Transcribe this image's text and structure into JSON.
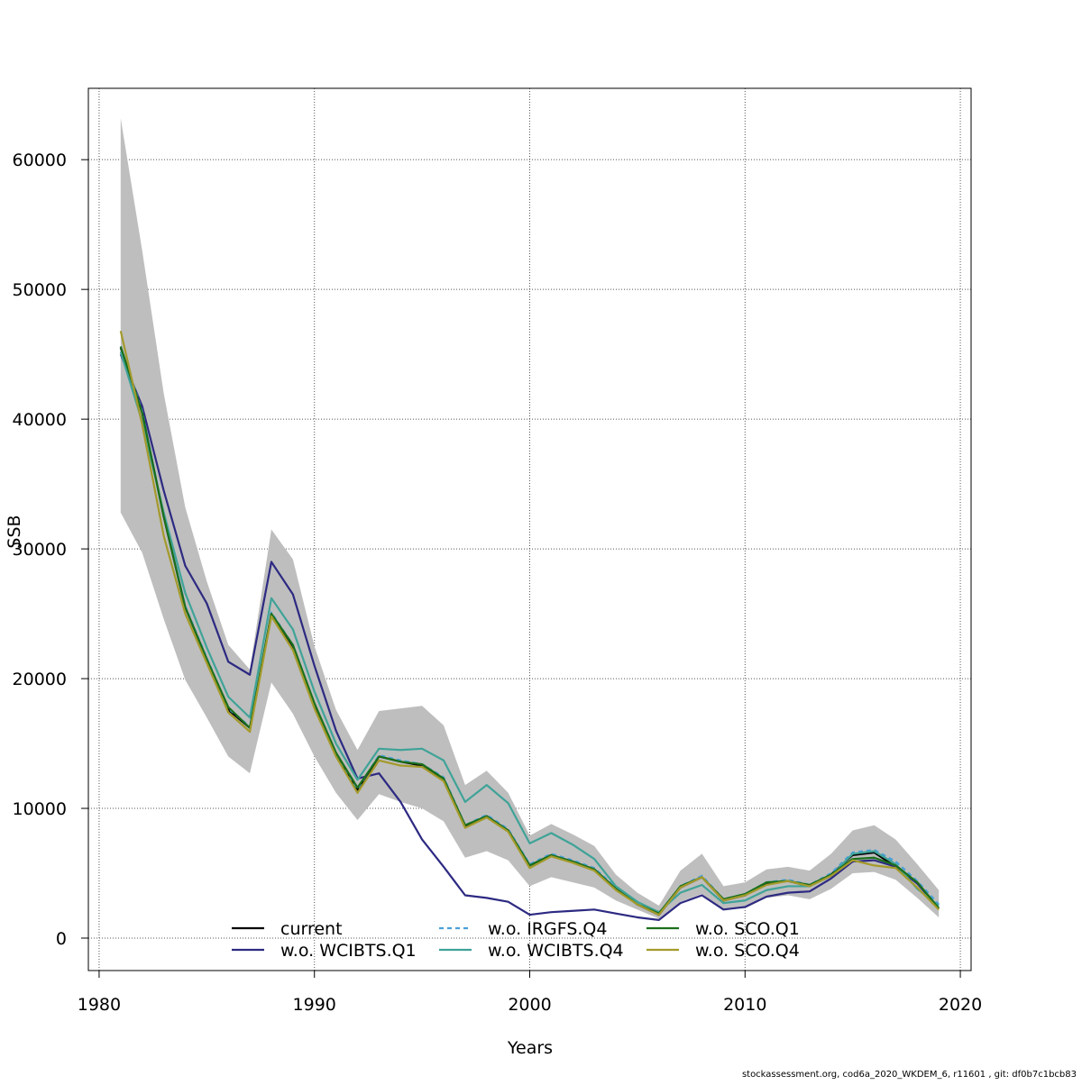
{
  "chart_data": {
    "type": "line",
    "xlabel": "Years",
    "ylabel": "SSB",
    "xlim": [
      1979.5,
      2020.5
    ],
    "ylim": [
      -2500,
      65500
    ],
    "xticks": [
      1980,
      1990,
      2000,
      2010,
      2020
    ],
    "yticks": [
      0,
      10000,
      20000,
      30000,
      40000,
      50000,
      60000
    ],
    "grid": true,
    "legend_position": "bottom",
    "x": [
      1981,
      1982,
      1983,
      1984,
      1985,
      1986,
      1987,
      1988,
      1989,
      1990,
      1991,
      1992,
      1993,
      1994,
      1995,
      1996,
      1997,
      1998,
      1999,
      2000,
      2001,
      2002,
      2003,
      2004,
      2005,
      2006,
      2007,
      2008,
      2009,
      2010,
      2011,
      2012,
      2013,
      2014,
      2015,
      2016,
      2017,
      2018,
      2019
    ],
    "confidence_band": {
      "color": "#bebebe",
      "upper": [
        63200,
        53000,
        42000,
        33200,
        27500,
        22600,
        20700,
        31500,
        29200,
        22500,
        17600,
        14500,
        17500,
        17700,
        17900,
        16400,
        11800,
        12900,
        11200,
        7900,
        8800,
        8000,
        7100,
        4900,
        3500,
        2500,
        5200,
        6500,
        4000,
        4300,
        5300,
        5500,
        5200,
        6500,
        8300,
        8700,
        7600,
        5700,
        3700
      ],
      "lower": [
        32800,
        29700,
        24600,
        19900,
        17000,
        14000,
        12700,
        19700,
        17300,
        14000,
        11200,
        9100,
        11100,
        10500,
        10000,
        9000,
        6200,
        6700,
        6000,
        4000,
        4700,
        4300,
        3900,
        2900,
        2200,
        1500,
        2800,
        3400,
        2200,
        2300,
        3100,
        3300,
        3000,
        3800,
        5000,
        5100,
        4500,
        3100,
        1600
      ]
    },
    "series": [
      {
        "name": "current",
        "color": "#000000",
        "dash": "",
        "values": [
          45500,
          40500,
          32500,
          25500,
          21500,
          17600,
          16200,
          25000,
          22500,
          18000,
          14200,
          11400,
          14000,
          13600,
          13300,
          12300,
          8600,
          9400,
          8300,
          5600,
          6400,
          5900,
          5300,
          3800,
          2600,
          1800,
          3900,
          4700,
          2900,
          3300,
          4200,
          4400,
          4000,
          4900,
          6400,
          6600,
          5500,
          4300,
          2300
        ]
      },
      {
        "name": "w.o. WCIBTS.Q1",
        "color": "#2d2a82",
        "dash": "",
        "values": [
          45000,
          41000,
          34500,
          28700,
          25800,
          21300,
          20300,
          29000,
          26500,
          21000,
          16000,
          12300,
          12700,
          10500,
          7600,
          5500,
          3300,
          3100,
          2800,
          1800,
          2000,
          2100,
          2200,
          1900,
          1600,
          1400,
          2700,
          3300,
          2200,
          2400,
          3200,
          3500,
          3600,
          4600,
          5900,
          6000,
          5500,
          4200,
          2300
        ]
      },
      {
        "name": "w.o. IRGFS.Q4",
        "color": "#49a0d8",
        "dash": "5,4",
        "values": [
          45600,
          40600,
          32600,
          25600,
          21600,
          17700,
          16300,
          25100,
          22600,
          18100,
          14300,
          11500,
          14100,
          13700,
          13400,
          12400,
          8700,
          9500,
          8400,
          5700,
          6500,
          6000,
          5400,
          3900,
          2700,
          1900,
          4000,
          4800,
          3000,
          3400,
          4300,
          4500,
          4100,
          5000,
          6600,
          6800,
          5900,
          4400,
          2600
        ]
      },
      {
        "name": "w.o. WCIBTS.Q4",
        "color": "#3fa398",
        "dash": "",
        "values": [
          45200,
          39800,
          32800,
          26600,
          22400,
          18600,
          17000,
          26200,
          23800,
          19000,
          15000,
          12200,
          14600,
          14500,
          14600,
          13700,
          10500,
          11800,
          10400,
          7300,
          8100,
          7200,
          6100,
          4000,
          2800,
          2000,
          3500,
          4100,
          2700,
          2900,
          3700,
          4000,
          4000,
          4800,
          6500,
          6700,
          5700,
          3800,
          2500
        ]
      },
      {
        "name": "w.o. SCO.Q1",
        "color": "#1a6f1a",
        "dash": "",
        "values": [
          45600,
          40500,
          32500,
          25500,
          21500,
          17800,
          16200,
          25000,
          22600,
          18100,
          14300,
          11600,
          14000,
          13600,
          13400,
          12300,
          8700,
          9400,
          8300,
          5600,
          6400,
          5900,
          5300,
          3800,
          2600,
          1900,
          4000,
          4700,
          3000,
          3400,
          4300,
          4400,
          4100,
          4900,
          6100,
          6200,
          5600,
          4300,
          2300
        ]
      },
      {
        "name": "w.o. SCO.Q4",
        "color": "#a49a2b",
        "dash": "",
        "values": [
          46800,
          39600,
          31000,
          25000,
          21200,
          17400,
          15900,
          24800,
          22200,
          17700,
          14000,
          11200,
          13700,
          13300,
          13200,
          12100,
          8500,
          9300,
          8200,
          5400,
          6300,
          5800,
          5200,
          3700,
          2600,
          1800,
          3900,
          4700,
          2900,
          3300,
          4100,
          4400,
          4000,
          4800,
          6000,
          5600,
          5400,
          3900,
          2200
        ]
      }
    ],
    "legend": [
      {
        "label": "current",
        "color": "#000000",
        "dash": ""
      },
      {
        "label": "w.o. WCIBTS.Q1",
        "color": "#2d2a82",
        "dash": ""
      },
      {
        "label": "w.o. IRGFS.Q4",
        "color": "#49a0d8",
        "dash": "5,4"
      },
      {
        "label": "w.o. WCIBTS.Q4",
        "color": "#3fa398",
        "dash": ""
      },
      {
        "label": "w.o. SCO.Q1",
        "color": "#1a6f1a",
        "dash": ""
      },
      {
        "label": "w.o. SCO.Q4",
        "color": "#a49a2b",
        "dash": ""
      }
    ]
  },
  "footer": "stockassessment.org, cod6a_2020_WKDEM_6, r11601 , git: df0b7c1bcb83"
}
